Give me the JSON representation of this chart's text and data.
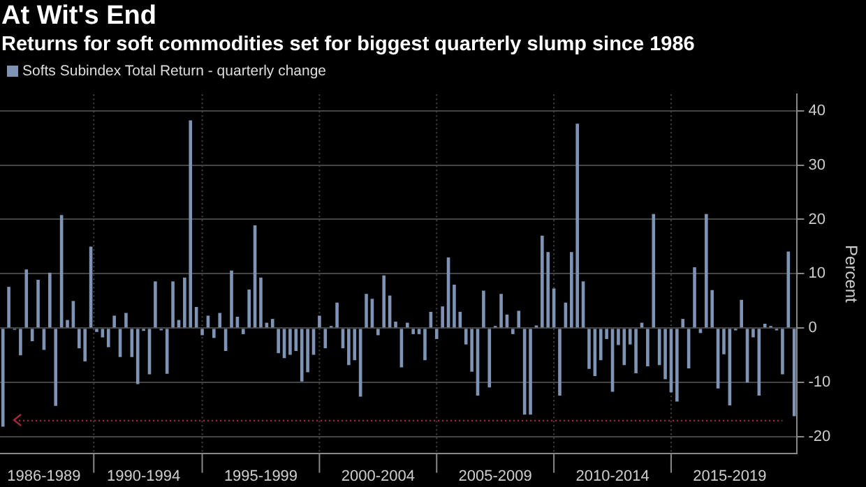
{
  "chart_data": {
    "type": "bar",
    "title": "At Wit's End",
    "subtitle": "Returns for soft commodities set for biggest quarterly slump since 1986",
    "ylabel": "Percent",
    "categories": [
      null,
      null,
      null,
      null,
      null,
      null,
      null,
      "1986-1989",
      null,
      null,
      null,
      null,
      null,
      null,
      null,
      null,
      null,
      null,
      null,
      null,
      null,
      null,
      null,
      null,
      "1990-1994",
      null,
      null,
      null,
      null,
      null,
      null,
      null,
      null,
      null,
      null,
      null,
      null,
      null,
      null,
      null,
      null,
      null,
      null,
      null,
      "1995-1999",
      null,
      null,
      null,
      null,
      null,
      null,
      null,
      null,
      null,
      null,
      null,
      null,
      null,
      null,
      null,
      null,
      null,
      null,
      null,
      "2000-2004",
      null,
      null,
      null,
      null,
      null,
      null,
      null,
      null,
      null,
      null,
      null,
      null,
      null,
      null,
      null,
      null,
      null,
      null,
      null,
      "2005-2009",
      null,
      null,
      null,
      null,
      null,
      null,
      null,
      null,
      null,
      null,
      null,
      null,
      null,
      null,
      null,
      null,
      null,
      null,
      null,
      "2010-2014",
      null,
      null,
      null,
      null,
      null,
      null,
      null,
      null,
      null,
      null,
      null,
      null,
      null,
      null,
      null,
      null,
      null,
      null,
      null,
      "2015-2019",
      null,
      null,
      null,
      null,
      null,
      null,
      null,
      null,
      null,
      null,
      null
    ],
    "series": [
      {
        "name": "Softs Subindex Total Return - quarterly change",
        "color": "#7f93b4",
        "values": [
          -18.1,
          7.6,
          -0.3,
          -5,
          10.8,
          -2.4,
          8.9,
          -4,
          10.2,
          -14.3,
          20.8,
          1.5,
          5,
          -3.7,
          -6.1,
          15,
          -0.7,
          -1.7,
          -3.5,
          2.3,
          -5.3,
          2.8,
          -5.3,
          -10.3,
          -0.5,
          -8.5,
          8.6,
          -0.4,
          -8.4,
          8.6,
          1.5,
          9.3,
          38.2,
          3.9,
          -1.3,
          2.3,
          -1.8,
          2.8,
          -4.2,
          10.6,
          2.1,
          -1.1,
          7.1,
          18.9,
          9.3,
          1,
          1.7,
          -4.6,
          -5.5,
          -4.9,
          -4.2,
          -9.8,
          -8.1,
          -4.9,
          2.3,
          -3.7,
          0.4,
          4.7,
          -3.7,
          -6.8,
          -5.9,
          -12.6,
          6.3,
          5.4,
          -1.3,
          9.7,
          6,
          1.2,
          -7.2,
          1,
          -1.1,
          -1.1,
          -5.9,
          3,
          -2,
          4,
          13,
          8,
          3,
          -3,
          -8,
          -12.4,
          6.9,
          -10.9,
          0.4,
          6.3,
          2.5,
          -1.1,
          3.2,
          -15.9,
          -15.9,
          0.5,
          17,
          14,
          7.3,
          -12.4,
          4.7,
          14,
          37.6,
          8.6,
          -7.5,
          -8.8,
          -5.9,
          -2,
          -11.7,
          -3.1,
          -6.8,
          -3,
          -8.3,
          1,
          -7,
          21,
          -6.8,
          -9.4,
          -11.8,
          -13.5,
          1.7,
          -7.4,
          11.2,
          -0.9,
          21,
          7,
          -11.1,
          -4.8,
          -14.2,
          -0.4,
          5.2,
          -10,
          -1.7,
          -12.4,
          0.8,
          0.4,
          -0.4,
          -8.5,
          14.1,
          -16.2
        ]
      }
    ],
    "ylim": [
      -23,
      43
    ],
    "yticks": [
      -20,
      -10,
      0,
      10,
      20,
      30,
      40
    ],
    "grid": true,
    "legend": "top left",
    "ref_lines": [
      {
        "axis": "y",
        "value": -17,
        "color": "#a0283c",
        "line_style": "dotted"
      }
    ]
  }
}
